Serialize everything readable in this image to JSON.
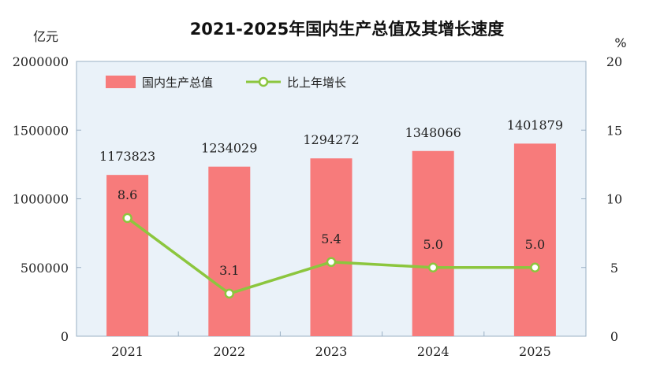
{
  "chart_data": {
    "type": "bar+line",
    "title": "2021-2025年国内生产总值及其增长速度",
    "categories": [
      "2021",
      "2022",
      "2023",
      "2024",
      "2025"
    ],
    "series": [
      {
        "name": "国内生产总值",
        "type": "bar",
        "axis": "left",
        "values": [
          1173823,
          1234029,
          1294272,
          1348066,
          1401879
        ],
        "labels": [
          "1173823",
          "1234029",
          "1294272",
          "1348066",
          "1401879"
        ]
      },
      {
        "name": "比上年增长",
        "type": "line",
        "axis": "right",
        "values": [
          8.6,
          3.1,
          5.4,
          5.0,
          5.0
        ],
        "labels": [
          "8.6",
          "3.1",
          "5.4",
          "5.0",
          "5.0"
        ]
      }
    ],
    "y_left": {
      "unit": "亿元",
      "range": [
        0,
        2000000
      ],
      "ticks": [
        "0",
        "500000",
        "1000000",
        "1500000",
        "2000000"
      ]
    },
    "y_right": {
      "unit": "%",
      "range": [
        0,
        20
      ],
      "ticks": [
        "0",
        "5",
        "10",
        "15",
        "20"
      ]
    },
    "legend_position": "top-left",
    "grid": false
  },
  "colors": {
    "bar": "#f77b7b",
    "line": "#8cc63e",
    "plot_bg": "#eaf2f9",
    "frame": "#9ab0c4"
  }
}
